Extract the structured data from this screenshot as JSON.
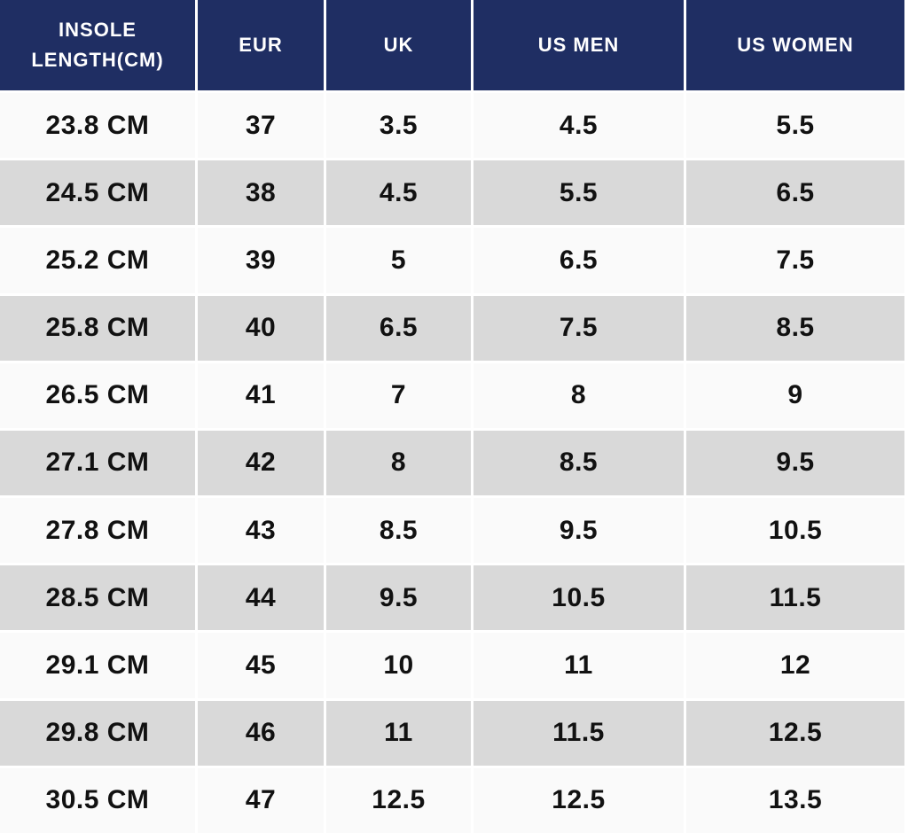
{
  "chart_data": {
    "type": "table",
    "columns": [
      "INSOLE LENGTH(CM)",
      "EUR",
      "UK",
      "US MEN",
      "US WOMEN"
    ],
    "rows": [
      [
        "23.8 CM",
        "37",
        "3.5",
        "4.5",
        "5.5"
      ],
      [
        "24.5 CM",
        "38",
        "4.5",
        "5.5",
        "6.5"
      ],
      [
        "25.2 CM",
        "39",
        "5",
        "6.5",
        "7.5"
      ],
      [
        "25.8 CM",
        "40",
        "6.5",
        "7.5",
        "8.5"
      ],
      [
        "26.5 CM",
        "41",
        "7",
        "8",
        "9"
      ],
      [
        "27.1 CM",
        "42",
        "8",
        "8.5",
        "9.5"
      ],
      [
        "27.8 CM",
        "43",
        "8.5",
        "9.5",
        "10.5"
      ],
      [
        "28.5 CM",
        "44",
        "9.5",
        "10.5",
        "11.5"
      ],
      [
        "29.1 CM",
        "45",
        "10",
        "11",
        "12"
      ],
      [
        "29.8 CM",
        "46",
        "11",
        "11.5",
        "12.5"
      ],
      [
        "30.5 CM",
        "47",
        "12.5",
        "12.5",
        "13.5"
      ]
    ],
    "layout": {
      "header_position": "top",
      "alternating_rows": true,
      "first_data_row_shade": "light"
    }
  },
  "colors": {
    "header_bg": "#1f2e63",
    "header_text": "#ffffff",
    "row_light": "#fafafa",
    "row_dark": "#d9d9d9",
    "cell_text": "#111111",
    "divider": "#ffffff"
  }
}
